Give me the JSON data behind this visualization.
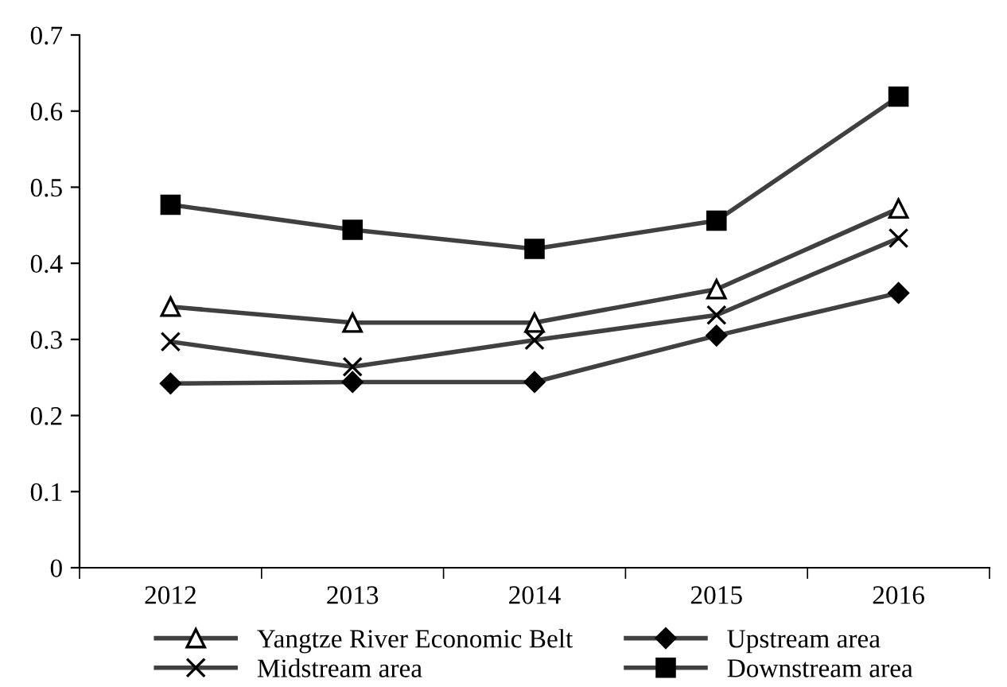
{
  "chart_data": {
    "type": "line",
    "categories": [
      "2012",
      "2013",
      "2014",
      "2015",
      "2016"
    ],
    "ylim": [
      0,
      0.7
    ],
    "yticks": [
      0,
      0.1,
      0.2,
      0.3,
      0.4,
      0.5,
      0.6,
      0.7
    ],
    "grid": false,
    "legend": "bottom",
    "series": [
      {
        "name": "Yangtze River Economic Belt",
        "color": "#404040",
        "marker": "triangle",
        "values": [
          0.343,
          0.322,
          0.322,
          0.366,
          0.472
        ]
      },
      {
        "name": "Upstream area",
        "color": "#404040",
        "marker": "diamond",
        "values": [
          0.242,
          0.244,
          0.244,
          0.305,
          0.361
        ]
      },
      {
        "name": "Midstream area",
        "color": "#404040",
        "marker": "cross",
        "values": [
          0.297,
          0.264,
          0.299,
          0.332,
          0.433
        ]
      },
      {
        "name": "Downstream area",
        "color": "#404040",
        "marker": "square",
        "values": [
          0.477,
          0.444,
          0.419,
          0.456,
          0.619
        ]
      }
    ]
  }
}
